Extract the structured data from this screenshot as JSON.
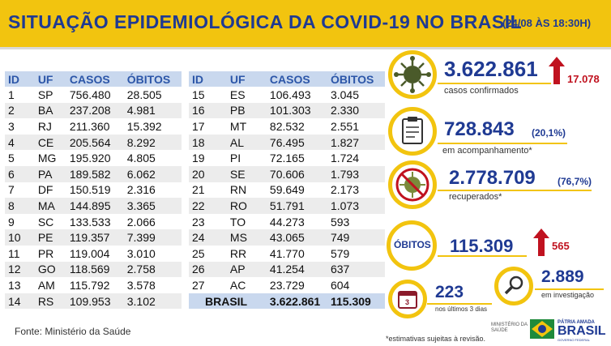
{
  "title": "SITUAÇÃO EPIDEMIOLÓGICA DA COVID-19 NO BRASIL",
  "stamp": "(24/08 ÀS 18:30H)",
  "table": {
    "headers": [
      "ID",
      "UF",
      "CASOS",
      "ÓBITOS"
    ],
    "left_rows": [
      [
        "1",
        "SP",
        "756.480",
        "28.505"
      ],
      [
        "2",
        "BA",
        "237.208",
        "4.981"
      ],
      [
        "3",
        "RJ",
        "211.360",
        "15.392"
      ],
      [
        "4",
        "CE",
        "205.564",
        "8.292"
      ],
      [
        "5",
        "MG",
        "195.920",
        "4.805"
      ],
      [
        "6",
        "PA",
        "189.582",
        "6.062"
      ],
      [
        "7",
        "DF",
        "150.519",
        "2.316"
      ],
      [
        "8",
        "MA",
        "144.895",
        "3.365"
      ],
      [
        "9",
        "SC",
        "133.533",
        "2.066"
      ],
      [
        "10",
        "PE",
        "119.357",
        "7.399"
      ],
      [
        "11",
        "PR",
        "119.004",
        "3.010"
      ],
      [
        "12",
        "GO",
        "118.569",
        "2.758"
      ],
      [
        "13",
        "AM",
        "115.792",
        "3.578"
      ],
      [
        "14",
        "RS",
        "109.953",
        "3.102"
      ]
    ],
    "right_rows": [
      [
        "15",
        "ES",
        "106.493",
        "3.045"
      ],
      [
        "16",
        "PB",
        "101.303",
        "2.330"
      ],
      [
        "17",
        "MT",
        "82.532",
        "2.551"
      ],
      [
        "18",
        "AL",
        "76.495",
        "1.827"
      ],
      [
        "19",
        "PI",
        "72.165",
        "1.724"
      ],
      [
        "20",
        "SE",
        "70.606",
        "1.793"
      ],
      [
        "21",
        "RN",
        "59.649",
        "2.173"
      ],
      [
        "22",
        "RO",
        "51.791",
        "1.073"
      ],
      [
        "23",
        "TO",
        "44.273",
        "593"
      ],
      [
        "24",
        "MS",
        "43.065",
        "749"
      ],
      [
        "25",
        "RR",
        "41.770",
        "579"
      ],
      [
        "26",
        "AP",
        "41.254",
        "637"
      ],
      [
        "27",
        "AC",
        "23.729",
        "604"
      ]
    ],
    "total": {
      "label": "BRASIL",
      "casos": "3.622.861",
      "obitos": "115.309"
    }
  },
  "stats": {
    "confirmados": {
      "value": "3.622.861",
      "label": "casos confirmados",
      "delta": "17.078",
      "icon": "virus-icon"
    },
    "acompanhamento": {
      "value": "728.843",
      "pct": "(20,1%)",
      "label": "em acompanhamento*",
      "icon": "clipboard-icon"
    },
    "recuperados": {
      "value": "2.778.709",
      "pct": "(76,7%)",
      "label": "recuperados*",
      "icon": "no-virus-icon"
    },
    "obitos": {
      "label": "ÓBITOS",
      "value": "115.309",
      "delta": "565"
    },
    "investigacao": {
      "value": "2.889",
      "label": "em investigação",
      "icon": "magnifier-icon"
    },
    "ultimos": {
      "value": "223",
      "label": "nos últimos 3 dias",
      "badge": "3",
      "icon": "calendar-icon"
    }
  },
  "fonte": "Fonte: Ministério da Saúde",
  "nota": "*estimativas sujeitas à revisão.",
  "logos": {
    "ms_line1": "MINISTÉRIO DA",
    "ms_line2": "SAÚDE",
    "pab_line1": "PÁTRIA AMADA",
    "pab_line2": "BRASIL",
    "pab_line3": "GOVERNO FEDERAL"
  },
  "colors": {
    "accent": "#f2c40f",
    "brand": "#1f3a93",
    "alert": "#c0121f",
    "header_bg": "#c9d8ee"
  }
}
